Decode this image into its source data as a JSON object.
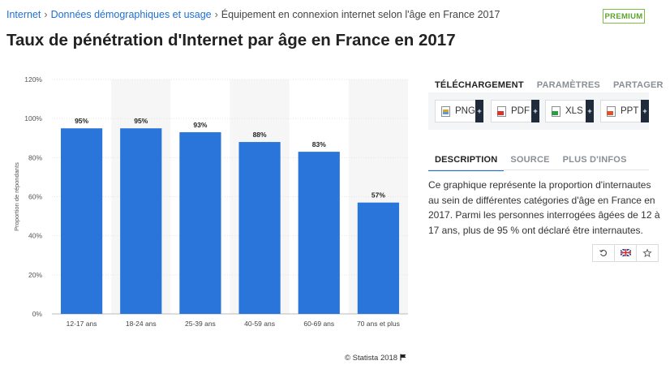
{
  "breadcrumb": {
    "items": [
      "Internet",
      "Données démographiques et usage",
      "Équipement en connexion internet selon l'âge en France 2017"
    ],
    "separator": "›"
  },
  "premium_label": "PREMIUM",
  "page_title": "Taux de pénétration d'Internet par âge en France en 2017",
  "chart_data": {
    "type": "bar",
    "categories": [
      "12-17 ans",
      "18-24 ans",
      "25-39 ans",
      "40-59 ans",
      "60-69 ans",
      "70 ans et plus"
    ],
    "values": [
      95,
      95,
      93,
      88,
      83,
      57
    ],
    "value_labels": [
      "95%",
      "95%",
      "93%",
      "88%",
      "83%",
      "57%"
    ],
    "ylabel": "Proportion de répondants",
    "ylim": [
      0,
      120
    ],
    "yticks": [
      "0%",
      "20%",
      "40%",
      "60%",
      "80%",
      "100%",
      "120%"
    ],
    "grid": true,
    "bar_color": "#2a75d9",
    "band_color": "#f6f6f6"
  },
  "tabs_top": [
    "TÉLÉCHARGEMENT",
    "PARAMÈTRES",
    "PARTAGER"
  ],
  "downloads": [
    {
      "label": "PNG",
      "icon": "image-file-icon",
      "color": "#d7a628"
    },
    {
      "label": "PDF",
      "icon": "pdf-file-icon",
      "color": "#d9342b"
    },
    {
      "label": "XLS",
      "icon": "excel-file-icon",
      "color": "#2e9b45"
    },
    {
      "label": "PPT",
      "icon": "powerpoint-file-icon",
      "color": "#d9532b"
    }
  ],
  "download_plus": "+",
  "tabs_desc": [
    "DESCRIPTION",
    "SOURCE",
    "PLUS D'INFOS"
  ],
  "description_lines": [
    "Ce graphique représente la proportion d'internautes",
    "au sein de différentes catégories d'âge en France en",
    "2017. Parmi les personnes interrogées âgées de 12 à",
    "17 ans, plus de 95 % ont déclaré être internautes."
  ],
  "tools": [
    "history-icon",
    "uk-flag-icon",
    "star-icon"
  ],
  "footer": "© Statista 2018"
}
